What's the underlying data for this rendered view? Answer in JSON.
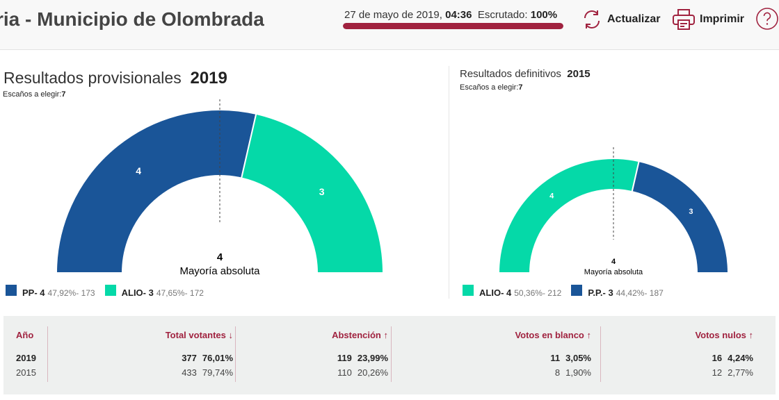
{
  "header": {
    "title": "ria - Municipio de Olombrada",
    "date": "27 de mayo de 2019,",
    "time": "04:36",
    "scrutiny_label": "Escrutado:",
    "scrutiny_value": "100%",
    "scrutiny_progress": 100,
    "refresh_label": "Actualizar",
    "print_label": "Imprimir",
    "accent": "#a0223f"
  },
  "current": {
    "title": "Resultados provisionales",
    "year": "2019",
    "seats_label": "Escaños a elegir:",
    "seats": "7",
    "majority_value": "4",
    "majority_label": "Mayoría absoluta",
    "parties": [
      {
        "name": "PP",
        "seats": 4,
        "seats_label": "4",
        "pct": "47,92%",
        "votes": "173",
        "color": "#1a5598"
      },
      {
        "name": "ALIO",
        "seats": 3,
        "seats_label": "3",
        "pct": "47,65%",
        "votes": "172",
        "color": "#05d9a8"
      }
    ]
  },
  "previous": {
    "title": "Resultados definitivos",
    "year": "2015",
    "seats_label": "Escaños a elegir:",
    "seats": "7",
    "majority_value": "4",
    "majority_label": "Mayoría absoluta",
    "parties": [
      {
        "name": "ALIO",
        "seats": 4,
        "seats_label": "4",
        "pct": "50,36%",
        "votes": "212",
        "color": "#05d9a8"
      },
      {
        "name": "P.P.",
        "seats": 3,
        "seats_label": "3",
        "pct": "44,42%",
        "votes": "187",
        "color": "#1a5598"
      }
    ]
  },
  "table": {
    "headers": {
      "year": "Año",
      "total": "Total votantes",
      "abst": "Abstención",
      "blank": "Votos en blanco",
      "null": "Votos nulos"
    },
    "sort_icons": {
      "total": "↓",
      "abst": "↑",
      "blank": "↑",
      "null": "↑"
    },
    "rows": [
      {
        "year": "2019",
        "total": "377",
        "total_pct": "76,01%",
        "abst": "119",
        "abst_pct": "23,99%",
        "blank": "11",
        "blank_pct": "3,05%",
        "null": "16",
        "null_pct": "4,24%"
      },
      {
        "year": "2015",
        "total": "433",
        "total_pct": "79,74%",
        "abst": "110",
        "abst_pct": "20,26%",
        "blank": "8",
        "blank_pct": "1,90%",
        "null": "12",
        "null_pct": "2,77%"
      }
    ]
  }
}
